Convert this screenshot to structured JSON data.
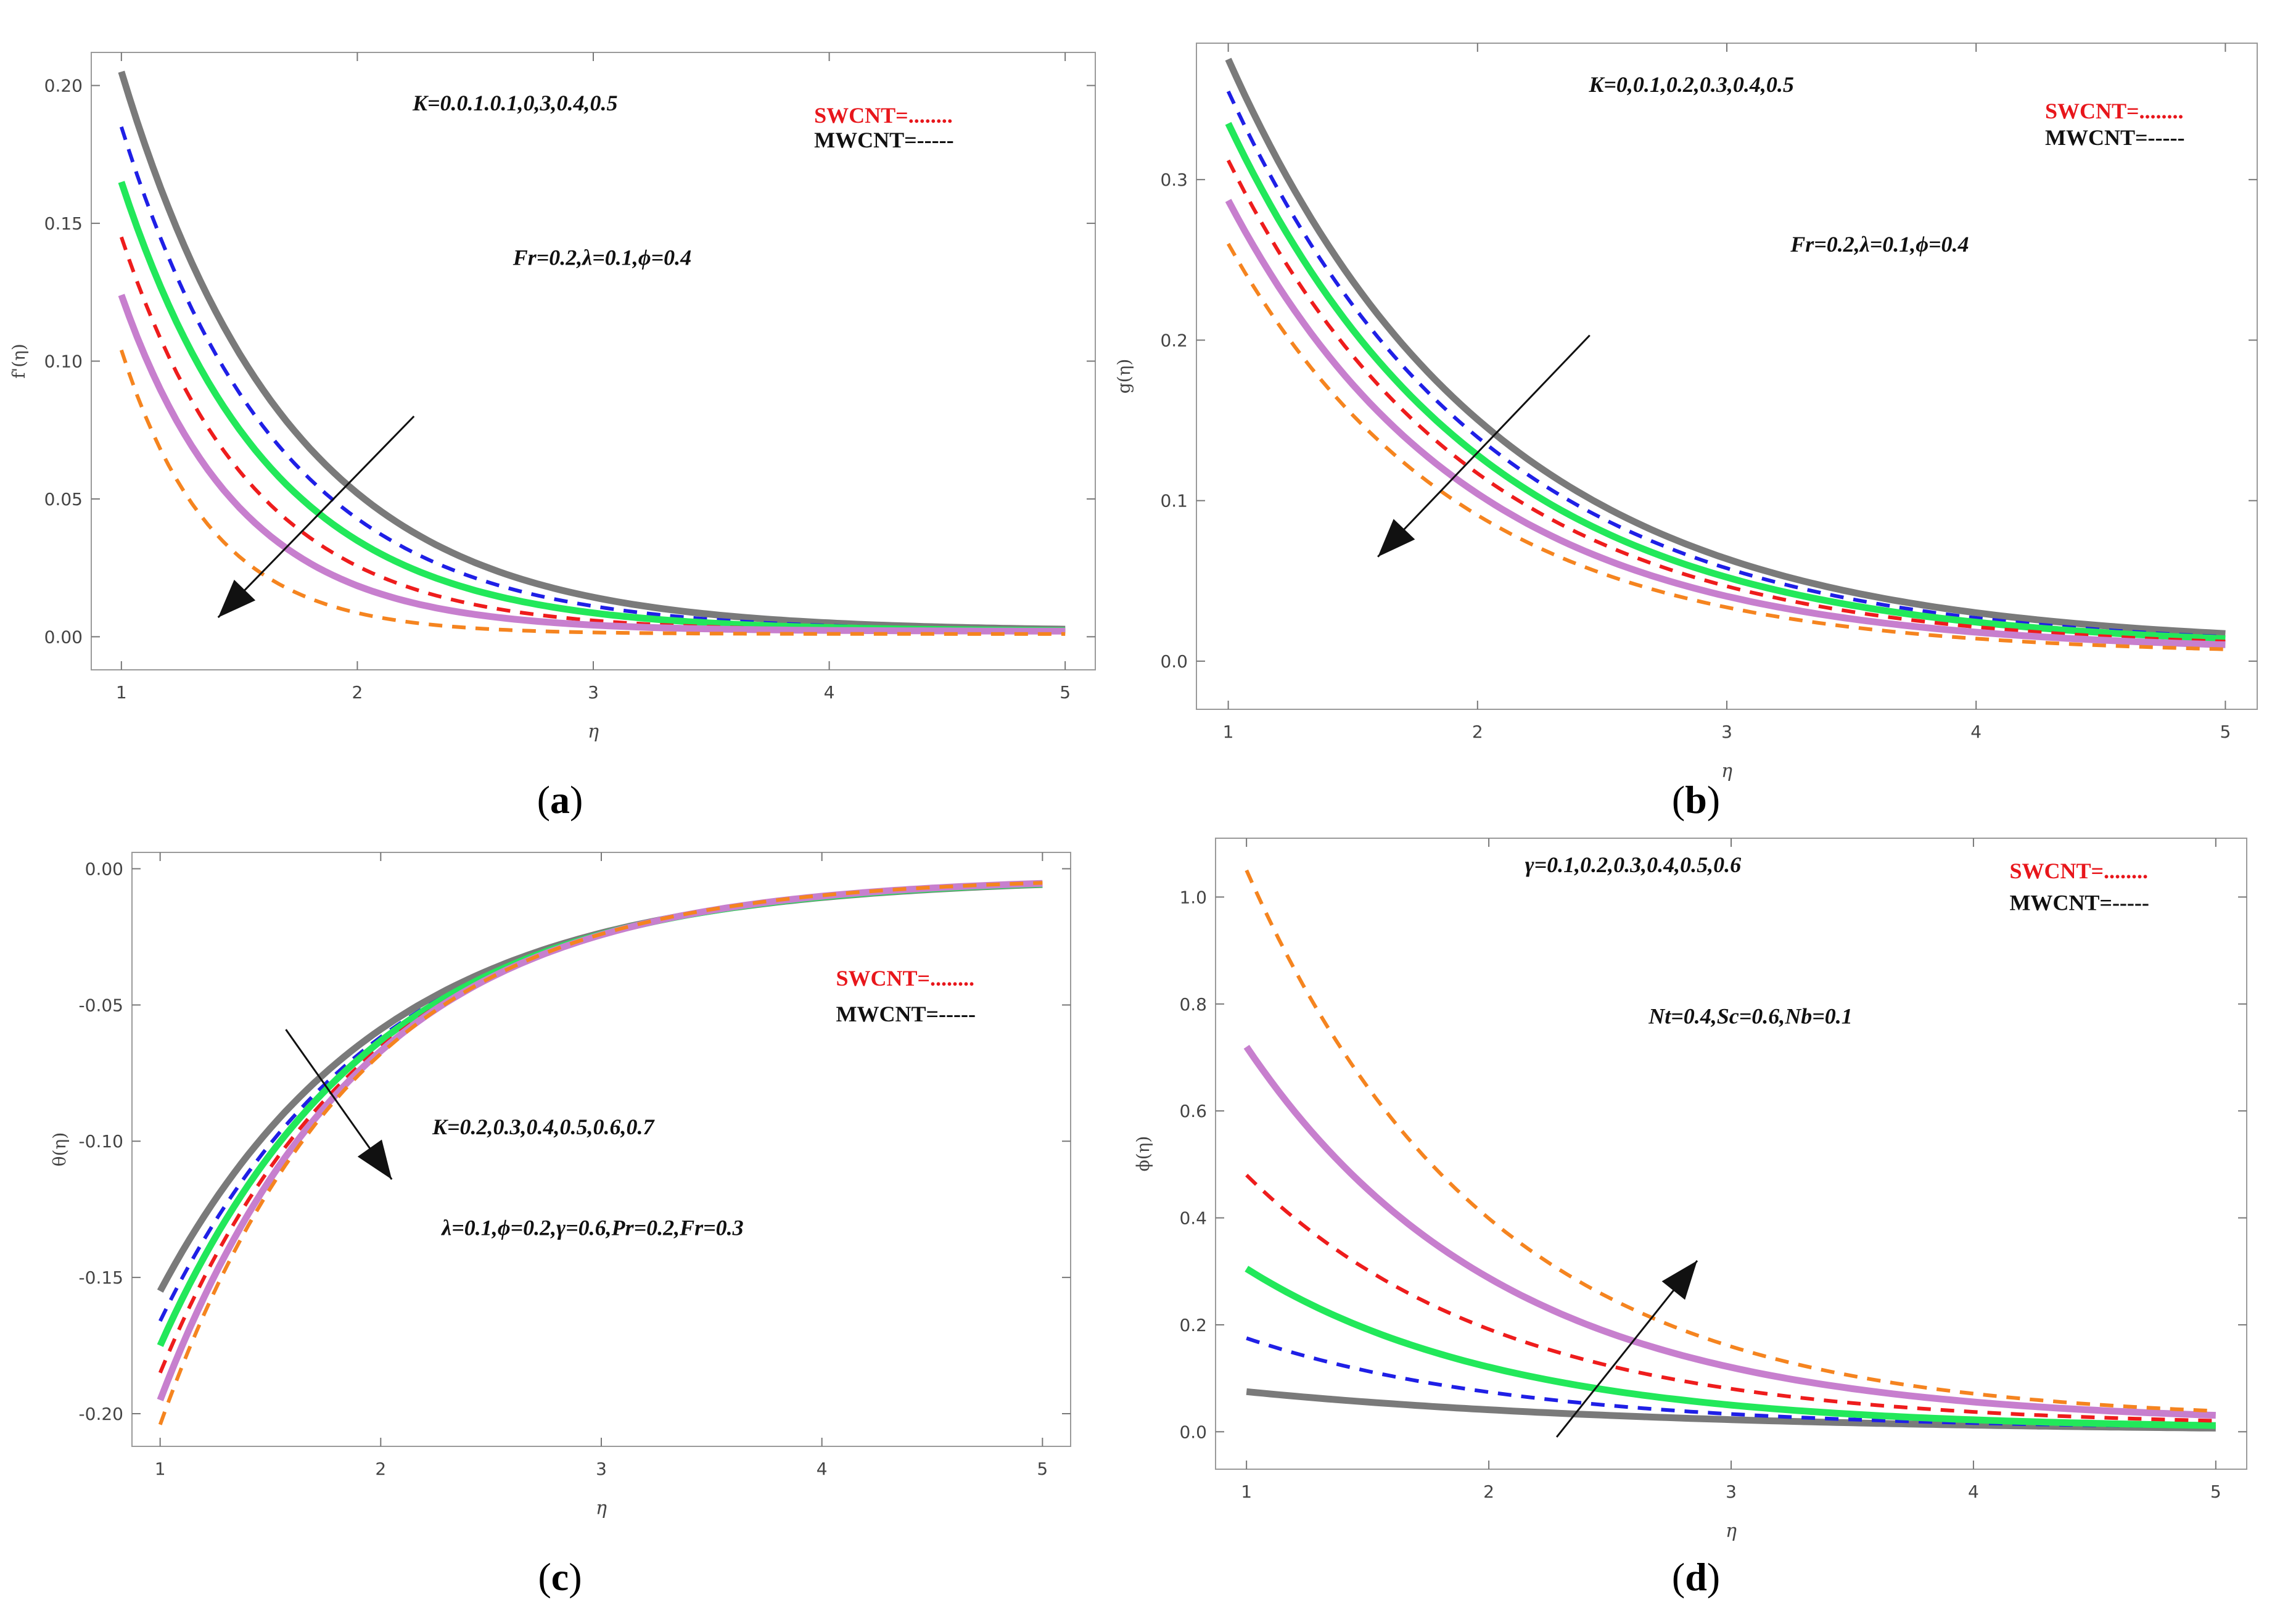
{
  "figure": {
    "panels": [
      {
        "id": "a",
        "caption_open": "(",
        "caption_letter": "a",
        "caption_close": ")"
      },
      {
        "id": "b",
        "caption_open": "(",
        "caption_letter": "b",
        "caption_close": ")"
      },
      {
        "id": "c",
        "caption_open": "(",
        "caption_letter": "c",
        "caption_close": ")"
      },
      {
        "id": "d",
        "caption_open": "(",
        "caption_letter": "d",
        "caption_close": ")"
      }
    ]
  },
  "colors": {
    "gray": "#7a7a7a",
    "blue": "#1f1fe6",
    "green": "#22e85a",
    "red": "#ee1c1c",
    "violet": "#c77fce",
    "orange": "#f5841f",
    "swcnt_label": "#e8161b",
    "text": "#1a1a1a"
  },
  "chart_data": [
    {
      "type": "line",
      "panel": "a",
      "xlabel": "η",
      "ylabel": "f'(η)",
      "xlim": [
        1,
        5
      ],
      "ylim": [
        -0.012,
        0.212
      ],
      "xticks": [
        "1",
        "2",
        "3",
        "4",
        "5"
      ],
      "yticks": [
        {
          "v": 0.0,
          "label": "0.00"
        },
        {
          "v": 0.05,
          "label": "0.05"
        },
        {
          "v": 0.1,
          "label": "0.10"
        },
        {
          "v": 0.15,
          "label": "0.15"
        },
        {
          "v": 0.2,
          "label": "0.20"
        }
      ],
      "annotations": {
        "param_range": "K=0.0.1.0.1,0,3,0.4,0.5",
        "fixed": "Fr=0.2,λ=0.1,ϕ=0.4",
        "swcnt": "SWCNT=........",
        "mwcnt": "MWCNT=-----"
      },
      "arrow_data": {
        "from": [
          2.24,
          0.08
        ],
        "to": [
          1.41,
          0.007
        ]
      },
      "series": [
        {
          "name": "K=0",
          "style": "solid",
          "color": "gray",
          "start": 0.205,
          "rate": 1.4,
          "end": 0.002
        },
        {
          "name": "K=0.1",
          "style": "dashed",
          "color": "blue",
          "start": 0.185,
          "rate": 1.5,
          "end": 0.002
        },
        {
          "name": "K=0.2",
          "style": "solid",
          "color": "green",
          "start": 0.165,
          "rate": 1.6,
          "end": 0.002
        },
        {
          "name": "K=0.3",
          "style": "dashed",
          "color": "red",
          "start": 0.145,
          "rate": 1.8,
          "end": 0.002
        },
        {
          "name": "K=0.4",
          "style": "solid",
          "color": "violet",
          "start": 0.124,
          "rate": 2.0,
          "end": 0.002
        },
        {
          "name": "K=0.5",
          "style": "dashed",
          "color": "orange",
          "start": 0.104,
          "rate": 2.6,
          "end": 0.001
        }
      ]
    },
    {
      "type": "line",
      "panel": "b",
      "xlabel": "η",
      "ylabel": "g(η)",
      "xlim": [
        1,
        5
      ],
      "ylim": [
        -0.03,
        0.385
      ],
      "xticks": [
        "1",
        "2",
        "3",
        "4",
        "5"
      ],
      "yticks": [
        {
          "v": 0.0,
          "label": "0.0"
        },
        {
          "v": 0.1,
          "label": "0.1"
        },
        {
          "v": 0.2,
          "label": "0.2"
        },
        {
          "v": 0.3,
          "label": "0.3"
        }
      ],
      "annotations": {
        "param_range": "K=0,0.1,0.2,0.3,0.4,0.5",
        "fixed": "Fr=0.2,λ=0.1,ϕ=0.4",
        "swcnt": "SWCNT=........",
        "mwcnt": "MWCNT=-----"
      },
      "arrow_data": {
        "from": [
          2.45,
          0.203
        ],
        "to": [
          1.6,
          0.065
        ]
      },
      "series": [
        {
          "name": "K=0",
          "style": "solid",
          "color": "gray",
          "start": 0.375,
          "rate": 0.95,
          "end": 0.009
        },
        {
          "name": "K=0.1",
          "style": "dashed",
          "color": "blue",
          "start": 0.355,
          "rate": 0.97,
          "end": 0.008
        },
        {
          "name": "K=0.2",
          "style": "solid",
          "color": "green",
          "start": 0.335,
          "rate": 1.0,
          "end": 0.008
        },
        {
          "name": "K=0.3",
          "style": "dashed",
          "color": "red",
          "start": 0.312,
          "rate": 1.02,
          "end": 0.007
        },
        {
          "name": "K=0.4",
          "style": "solid",
          "color": "violet",
          "start": 0.287,
          "rate": 1.05,
          "end": 0.006
        },
        {
          "name": "K=0.5",
          "style": "dashed",
          "color": "orange",
          "start": 0.26,
          "rate": 1.08,
          "end": 0.004
        }
      ]
    },
    {
      "type": "line",
      "panel": "c",
      "xlabel": "η",
      "ylabel": "θ(η)",
      "xlim": [
        1,
        5
      ],
      "ylim": [
        -0.212,
        0.006
      ],
      "xticks": [
        "1",
        "2",
        "3",
        "4",
        "5"
      ],
      "yticks": [
        {
          "v": 0.0,
          "label": "0.00"
        },
        {
          "v": -0.05,
          "label": "-0.05"
        },
        {
          "v": -0.1,
          "label": "-0.10"
        },
        {
          "v": -0.15,
          "label": "-0.15"
        },
        {
          "v": -0.2,
          "label": "-0.20"
        }
      ],
      "annotations": {
        "param_range": "K=0.2,0.3,0.4,0.5,0.6,0.7",
        "fixed": "λ=0.1,ϕ=0.2,γ=0.6,Pr=0.2,Fr=0.3",
        "swcnt": "SWCNT=........",
        "mwcnt": "MWCNT=-----"
      },
      "arrow_data": {
        "from": [
          1.57,
          -0.059
        ],
        "to": [
          2.05,
          -0.114
        ]
      },
      "series": [
        {
          "name": "K=0.2",
          "style": "solid",
          "color": "gray",
          "start": -0.155,
          "rate": 1.0,
          "end": -0.003
        },
        {
          "name": "K=0.3",
          "style": "dashed",
          "color": "blue",
          "start": -0.166,
          "rate": 1.02,
          "end": -0.003
        },
        {
          "name": "K=0.4",
          "style": "solid",
          "color": "green",
          "start": -0.175,
          "rate": 1.05,
          "end": -0.003
        },
        {
          "name": "K=0.5",
          "style": "dashed",
          "color": "red",
          "start": -0.185,
          "rate": 1.07,
          "end": -0.003
        },
        {
          "name": "K=0.6",
          "style": "solid",
          "color": "violet",
          "start": -0.195,
          "rate": 1.1,
          "end": -0.003
        },
        {
          "name": "K=0.7",
          "style": "dashed",
          "color": "orange",
          "start": -0.204,
          "rate": 1.13,
          "end": -0.003
        }
      ]
    },
    {
      "type": "line",
      "panel": "d",
      "xlabel": "η",
      "ylabel": "ϕ(η)",
      "xlim": [
        1,
        5
      ],
      "ylim": [
        -0.07,
        1.11
      ],
      "xticks": [
        "1",
        "2",
        "3",
        "4",
        "5"
      ],
      "yticks": [
        {
          "v": 0.0,
          "label": "0.0"
        },
        {
          "v": 0.2,
          "label": "0.2"
        },
        {
          "v": 0.4,
          "label": "0.4"
        },
        {
          "v": 0.6,
          "label": "0.6"
        },
        {
          "v": 0.8,
          "label": "0.8"
        },
        {
          "v": 1.0,
          "label": "1.0"
        }
      ],
      "annotations": {
        "param_range": "γ=0.1,0.2,0.3,0.4,0.5,0.6",
        "fixed": "Nt=0.4,Sc=0.6,Nb=0.1",
        "swcnt": "SWCNT=........",
        "mwcnt": "MWCNT=-----"
      },
      "arrow_data": {
        "from": [
          2.28,
          -0.01
        ],
        "to": [
          2.86,
          0.32
        ]
      },
      "series": [
        {
          "name": "γ=0.1",
          "style": "solid",
          "color": "gray",
          "start": 0.075,
          "rate": 0.6,
          "end": 0.0
        },
        {
          "name": "γ=0.2",
          "style": "dashed",
          "color": "blue",
          "start": 0.175,
          "rate": 0.9,
          "end": 0.005
        },
        {
          "name": "γ=0.3",
          "style": "solid",
          "color": "green",
          "start": 0.305,
          "rate": 0.95,
          "end": 0.005
        },
        {
          "name": "γ=0.4",
          "style": "dashed",
          "color": "red",
          "start": 0.48,
          "rate": 0.95,
          "end": 0.01
        },
        {
          "name": "γ=0.5",
          "style": "solid",
          "color": "violet",
          "start": 0.72,
          "rate": 0.95,
          "end": 0.015
        },
        {
          "name": "γ=0.6",
          "style": "dashed",
          "color": "orange",
          "start": 1.05,
          "rate": 1.0,
          "end": 0.02
        }
      ]
    }
  ]
}
